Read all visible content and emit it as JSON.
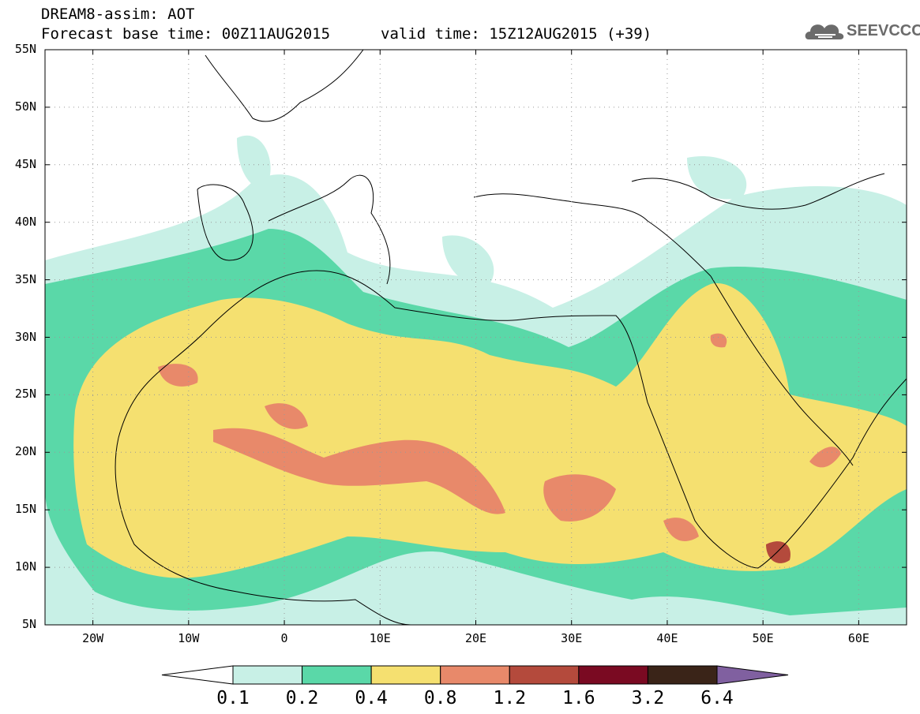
{
  "header": {
    "model_title": "DREAM8-assim: AOT",
    "forecast_base": "Forecast base time: 00Z11AUG2015",
    "valid_time": "valid time: 15Z12AUG2015 (+39)"
  },
  "logo": {
    "text": "SEEVCCC",
    "icon": "cloud-logo-icon"
  },
  "map": {
    "lon_range": [
      -25,
      65
    ],
    "lat_range": [
      5,
      55
    ],
    "lat_labels": [
      "55N",
      "50N",
      "45N",
      "40N",
      "35N",
      "30N",
      "25N",
      "20N",
      "15N",
      "10N",
      "5N"
    ],
    "lon_labels": [
      "20W",
      "10W",
      "0",
      "10E",
      "20E",
      "30E",
      "40E",
      "50E",
      "60E"
    ],
    "grid": "dotted",
    "variable": "Aerosol optical thickness"
  },
  "colorbar": {
    "levels": [
      "0.1",
      "0.2",
      "0.4",
      "0.8",
      "1.2",
      "1.6",
      "3.2",
      "6.4"
    ],
    "colors": [
      "#ffffff",
      "#c8f0e6",
      "#5ad8a8",
      "#f5e070",
      "#e8896a",
      "#b44a3c",
      "#7a0a22",
      "#3a2418",
      "#8060a0"
    ]
  }
}
